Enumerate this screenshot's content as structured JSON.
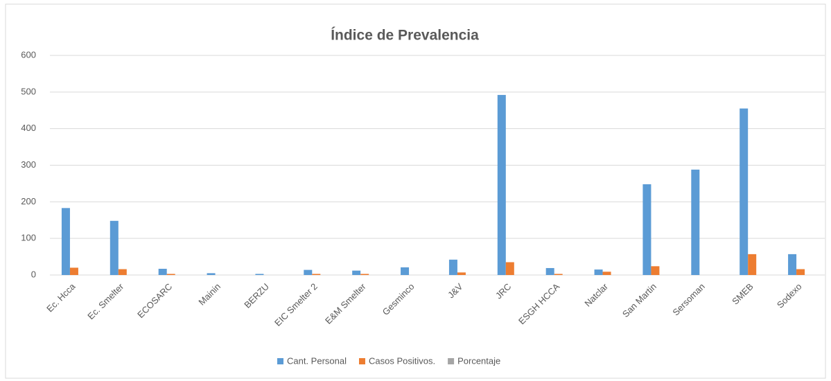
{
  "chart_data": {
    "type": "bar",
    "title": "Índice de Prevalencia",
    "categories": [
      "Ec. Hcca",
      "Ec. Smelter",
      "ECOSARC",
      "Mainin",
      "BERZU",
      "EIC Smelter 2",
      "E&M Smelter",
      "Gesminco",
      "J&V",
      "JRC",
      "ESGH HCCA",
      "Natclar",
      "San Martin",
      "Sersoman",
      "SMEB",
      "Sodexo"
    ],
    "series": [
      {
        "name": "Cant. Personal",
        "color": "#5b9bd5",
        "values": [
          183,
          148,
          17,
          5,
          3,
          14,
          12,
          21,
          42,
          492,
          19,
          15,
          248,
          288,
          455,
          57
        ]
      },
      {
        "name": "Casos Positivos.",
        "color": "#ed7d31",
        "values": [
          20,
          16,
          3,
          0,
          0,
          3,
          3,
          0,
          7,
          35,
          3,
          9,
          24,
          0,
          57,
          16
        ]
      },
      {
        "name": "Porcentaje",
        "color": "#a5a5a5",
        "values": [
          0,
          0,
          0,
          0,
          0,
          0,
          0,
          0,
          0,
          0,
          0,
          0,
          0,
          0,
          0,
          0
        ]
      }
    ],
    "ylim": [
      0,
      600
    ],
    "yticks": [
      0,
      100,
      200,
      300,
      400,
      500,
      600
    ],
    "grid": true,
    "legend": "bottom"
  }
}
